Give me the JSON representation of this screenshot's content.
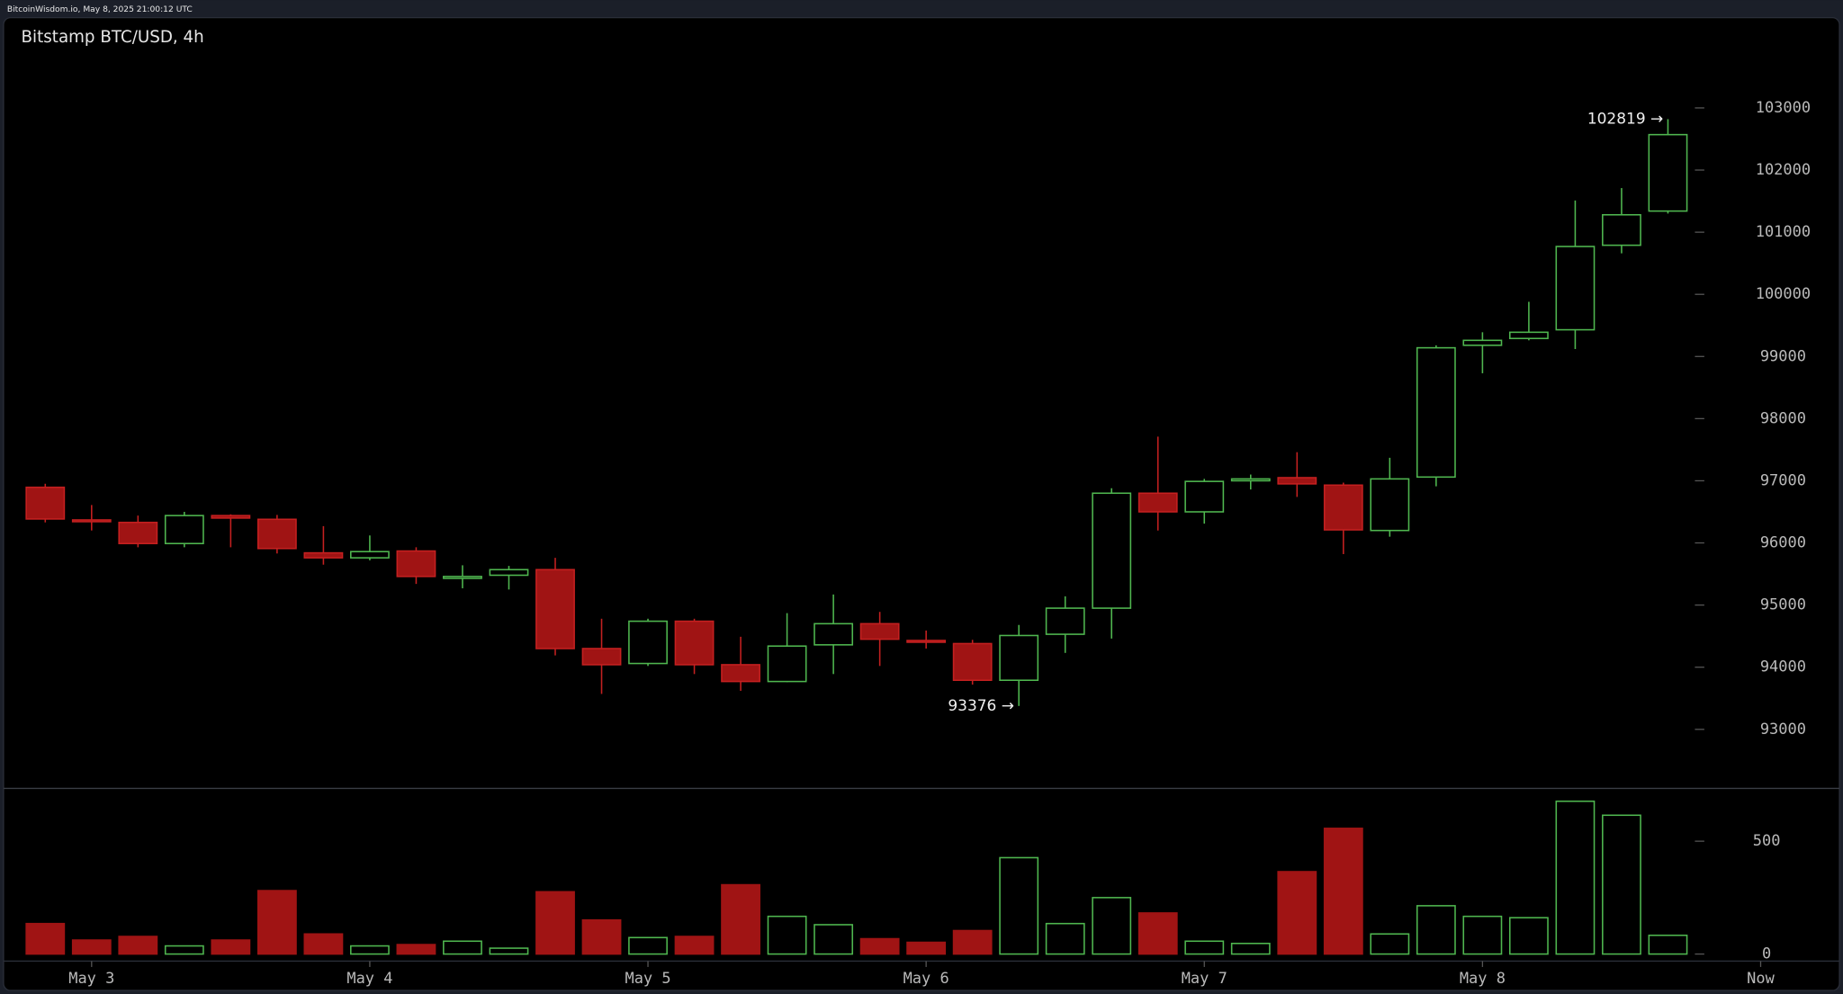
{
  "header": {
    "text": "BitcoinWisdom.io, May 8, 2025 21:00:12 UTC"
  },
  "chart_data": {
    "type": "candlestick",
    "title": "Bitstamp BTC/USD, 4h",
    "open": [
      96895,
      96370,
      96330,
      95990,
      96440,
      96380,
      95840,
      95760,
      95870,
      95430,
      95480,
      95570,
      94300,
      94060,
      94740,
      94040,
      93770,
      94360,
      94700,
      94430,
      94380,
      93790,
      94530,
      94950,
      96800,
      96500,
      97000,
      97050,
      96930,
      96200,
      97060,
      99180,
      99290,
      99430,
      100790,
      101340
    ],
    "high": [
      96952,
      96610,
      96440,
      96500,
      96460,
      96450,
      96270,
      96120,
      95930,
      95640,
      95630,
      95760,
      94780,
      94780,
      94780,
      94490,
      94870,
      95170,
      94890,
      94590,
      94440,
      94680,
      95140,
      96880,
      97710,
      97030,
      97100,
      97460,
      96970,
      97370,
      99180,
      99390,
      99880,
      101510,
      101710,
      102819
    ],
    "low": [
      96330,
      96200,
      95930,
      95930,
      95930,
      95830,
      95650,
      95720,
      95340,
      95270,
      95250,
      94190,
      93570,
      94020,
      93890,
      93620,
      93760,
      93890,
      94020,
      94300,
      93720,
      93376,
      94230,
      94460,
      96200,
      96310,
      96860,
      96740,
      95820,
      96100,
      96910,
      98730,
      99260,
      99120,
      100660,
      101300
    ],
    "close": [
      96385,
      96345,
      95990,
      96440,
      96400,
      95910,
      95760,
      95860,
      95460,
      95460,
      95570,
      94300,
      94040,
      94740,
      94040,
      93770,
      94340,
      94700,
      94450,
      94410,
      93790,
      94510,
      94950,
      96800,
      96500,
      96990,
      97030,
      96950,
      96210,
      97030,
      99140,
      99260,
      99390,
      100770,
      101280,
      102570
    ],
    "volume": [
      135,
      62,
      78,
      36,
      62,
      281,
      89,
      36,
      42,
      57,
      26,
      276,
      151,
      73,
      78,
      307,
      167,
      130,
      68,
      52,
      104,
      427,
      135,
      250,
      182,
      57,
      47,
      365,
      557,
      89,
      214,
      167,
      161,
      677,
      615,
      83
    ],
    "up_color": "#4fb64f",
    "down_color": "#a01414",
    "down_edge_color": "#c42020",
    "ylim": [
      92050,
      103980
    ],
    "yticks": [
      93000,
      94000,
      95000,
      96000,
      97000,
      98000,
      99000,
      100000,
      101000,
      102000,
      103000
    ],
    "volume_ylim": [
      0,
      734
    ],
    "volume_yticks": [
      0,
      500
    ],
    "xlim": [
      -0.9,
      38.7
    ],
    "xticks": [
      {
        "value": 1,
        "label": "May 3"
      },
      {
        "value": 7,
        "label": "May 4"
      },
      {
        "value": 13,
        "label": "May 5"
      },
      {
        "value": 19,
        "label": "May 6"
      },
      {
        "value": 25,
        "label": "May 7"
      },
      {
        "value": 31,
        "label": "May 8"
      },
      {
        "value": 37,
        "label": "Now"
      }
    ],
    "annotations": [
      {
        "text": "102819 →",
        "value": 102819
      },
      {
        "text": "93376 →",
        "value": 93376
      }
    ]
  }
}
